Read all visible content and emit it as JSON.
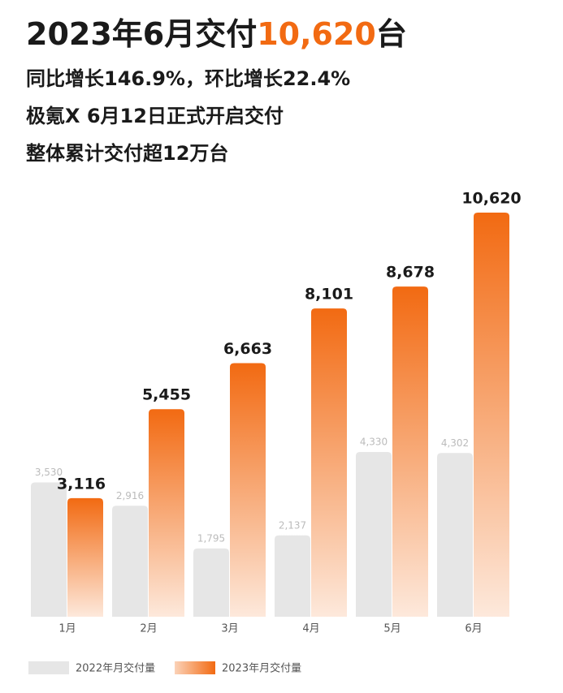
{
  "chart_data": {
    "type": "bar",
    "title": {
      "prefix": "2023年6月交付",
      "highlight": "10,620",
      "suffix": "台"
    },
    "subtitles": [
      "同比增长146.9%，环比增长22.4%",
      "极氪X 6月12日正式开启交付",
      "整体累计交付超12万台"
    ],
    "highlight_color": "#f26a12",
    "categories": [
      "1月",
      "2月",
      "3月",
      "4月",
      "5月",
      "6月"
    ],
    "series": [
      {
        "name": "2022年月交付量",
        "color": "#e6e6e6",
        "values": [
          3530,
          2916,
          1795,
          2137,
          4330,
          4302
        ],
        "value_labels": [
          "3,530",
          "2,916",
          "1,795",
          "2,137",
          "4,330",
          "4,302"
        ]
      },
      {
        "name": "2023年月交付量",
        "color": "#f26a12",
        "values": [
          3116,
          5455,
          6663,
          8101,
          8678,
          10620
        ],
        "value_labels": [
          "3,116",
          "5,455",
          "6,663",
          "8,101",
          "8,678",
          "10,620"
        ]
      }
    ]
  }
}
